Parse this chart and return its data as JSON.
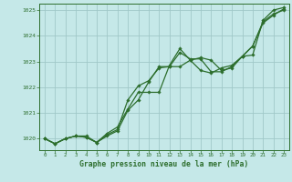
{
  "background_color": "#c5e8e8",
  "grid_color": "#a0c8c8",
  "line_color": "#2d6e2d",
  "xlabel": "Graphe pression niveau de la mer (hPa)",
  "ylim": [
    1019.55,
    1025.25
  ],
  "xlim": [
    -0.5,
    23.5
  ],
  "yticks": [
    1020,
    1021,
    1022,
    1023,
    1024,
    1025
  ],
  "xticks": [
    0,
    1,
    2,
    3,
    4,
    5,
    6,
    7,
    8,
    9,
    10,
    11,
    12,
    13,
    14,
    15,
    16,
    17,
    18,
    19,
    20,
    21,
    22,
    23
  ],
  "series1": [
    1020.0,
    1019.8,
    1020.0,
    1020.1,
    1020.1,
    1019.85,
    1020.15,
    1020.35,
    1021.5,
    1022.05,
    1022.25,
    1022.75,
    1022.8,
    1023.35,
    1023.1,
    1023.1,
    1022.6,
    1022.6,
    1022.8,
    1023.2,
    1023.6,
    1024.55,
    1024.85,
    1025.0
  ],
  "series2": [
    1020.0,
    1019.8,
    1020.0,
    1020.1,
    1020.05,
    1019.85,
    1020.1,
    1020.3,
    1021.1,
    1021.5,
    1022.2,
    1022.8,
    1022.8,
    1022.8,
    1023.05,
    1023.15,
    1023.05,
    1022.65,
    1022.75,
    1023.2,
    1023.6,
    1024.5,
    1024.8,
    1025.05
  ],
  "series3": [
    1020.0,
    1019.8,
    1020.0,
    1020.1,
    1020.05,
    1019.85,
    1020.2,
    1020.45,
    1021.15,
    1021.8,
    1021.8,
    1021.8,
    1022.85,
    1023.5,
    1023.05,
    1022.65,
    1022.55,
    1022.75,
    1022.85,
    1023.2,
    1023.25,
    1024.6,
    1025.0,
    1025.1
  ]
}
